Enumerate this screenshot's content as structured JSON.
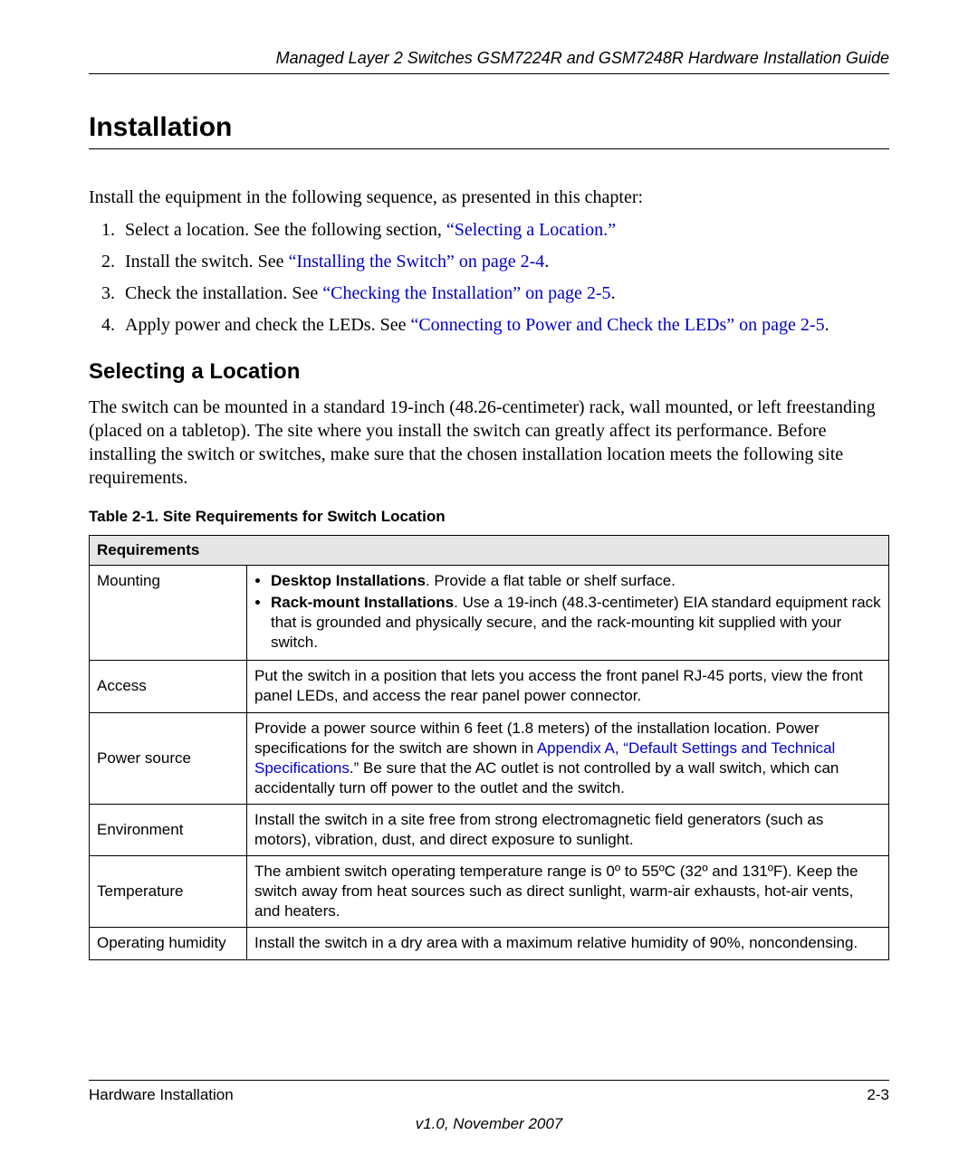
{
  "header": {
    "title": "Managed Layer 2 Switches GSM7224R and GSM7248R Hardware Installation Guide"
  },
  "section": {
    "title": "Installation",
    "intro": "Install the equipment in the following sequence, as presented in this chapter:",
    "steps": [
      {
        "prefix": "Select a location. See the following section, ",
        "link": "“Selecting a Location.”",
        "suffix": ""
      },
      {
        "prefix": "Install the switch. See ",
        "link": "“Installing the Switch” on page 2-4",
        "suffix": "."
      },
      {
        "prefix": "Check the installation. See ",
        "link": "“Checking the Installation” on page 2-5",
        "suffix": "."
      },
      {
        "prefix": "Apply power and check the LEDs. See ",
        "link": "“Connecting to Power and Check the LEDs” on page 2-5",
        "suffix": "."
      }
    ]
  },
  "subsection": {
    "title": "Selecting a Location",
    "para": "The switch can be mounted in a standard 19-inch (48.26-centimeter) rack, wall mounted, or left freestanding (placed on a tabletop). The site where you install the switch can greatly affect its performance. Before installing the switch or switches, make sure that the chosen installation location meets the following site requirements."
  },
  "table": {
    "caption": "Table 2-1.  Site Requirements for Switch Location",
    "header": "Requirements",
    "rows": {
      "mounting": {
        "label": "Mounting",
        "bullet1_bold": "Desktop Installations",
        "bullet1_rest": ". Provide a flat table or shelf surface.",
        "bullet2_bold": "Rack-mount Installations",
        "bullet2_rest": ". Use a 19-inch (48.3-centimeter) EIA standard equipment rack that is grounded and physically secure, and the rack-mounting kit supplied with your switch."
      },
      "access": {
        "label": "Access",
        "text": "Put the switch in a position that lets you access the front panel RJ-45 ports, view the front panel LEDs, and access the rear panel power connector."
      },
      "power": {
        "label": "Power source",
        "pre": "Provide a power source within 6 feet (1.8 meters) of the installation location. Power specifications for the switch are shown in ",
        "link": "Appendix A, “Default Settings and Technical Specifications",
        "post": ".” Be sure that the AC outlet is not controlled by a wall switch, which can accidentally turn off power to the outlet and the switch."
      },
      "environment": {
        "label": "Environment",
        "text": "Install the switch in a site free from strong electromagnetic field generators (such as motors), vibration, dust, and direct exposure to sunlight."
      },
      "temperature": {
        "label": "Temperature",
        "text": "The ambient switch operating temperature range is 0º to 55ºC (32º and 131ºF). Keep the switch away from heat sources such as direct sunlight, warm-air exhausts, hot-air vents, and heaters."
      },
      "humidity": {
        "label": "Operating humidity",
        "text": "Install the switch in a dry area with a maximum relative humidity of 90%, noncondensing."
      }
    }
  },
  "footer": {
    "left": "Hardware Installation",
    "right": "2-3",
    "version": "v1.0, November 2007"
  }
}
